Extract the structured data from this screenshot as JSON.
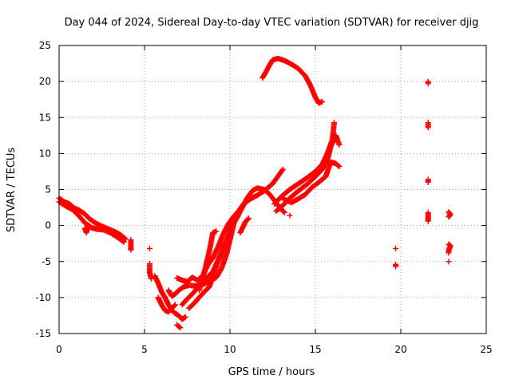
{
  "chart_data": {
    "type": "scatter",
    "title": "Day 044 of 2024, Sidereal Day-to-day VTEC variation (SDTVAR) for receiver djig",
    "xlabel": "GPS time / hours",
    "ylabel": "SDTVAR / TECUs",
    "xlim": [
      0,
      25
    ],
    "ylim": [
      -15,
      25
    ],
    "xticks": [
      "0",
      "5",
      "10",
      "15",
      "20",
      "25"
    ],
    "yticks": [
      "25",
      "20",
      "15",
      "10",
      "5",
      "0",
      "-5",
      "-10",
      "-15"
    ],
    "grid": true,
    "marker": "plus",
    "color": "#ff0000",
    "segments": [
      [
        [
          0.0,
          3.8
        ],
        [
          0.3,
          3.3
        ],
        [
          0.6,
          3.0
        ],
        [
          0.9,
          2.4
        ],
        [
          1.2,
          2.1
        ],
        [
          1.5,
          1.6
        ],
        [
          1.8,
          0.9
        ],
        [
          2.1,
          0.4
        ],
        [
          2.4,
          0.0
        ],
        [
          2.7,
          -0.3
        ],
        [
          3.0,
          -0.6
        ],
        [
          3.3,
          -0.9
        ],
        [
          3.6,
          -1.3
        ],
        [
          3.9,
          -1.9
        ]
      ],
      [
        [
          0.0,
          3.3
        ],
        [
          0.4,
          2.7
        ],
        [
          0.8,
          2.2
        ],
        [
          1.1,
          1.5
        ],
        [
          1.5,
          0.4
        ],
        [
          1.9,
          -0.3
        ],
        [
          2.2,
          -0.5
        ],
        [
          2.6,
          -0.6
        ],
        [
          3.0,
          -1.0
        ],
        [
          3.4,
          -1.6
        ],
        [
          3.8,
          -2.3
        ]
      ],
      [
        [
          1.5,
          -0.4
        ],
        [
          1.6,
          -1.0
        ],
        [
          1.7,
          -0.2
        ]
      ],
      [
        [
          4.2,
          -2.0
        ],
        [
          4.2,
          -2.5
        ],
        [
          4.2,
          -3.0
        ],
        [
          4.2,
          -3.4
        ]
      ],
      [
        [
          5.3,
          -3.2
        ]
      ],
      [
        [
          5.3,
          -5.3
        ],
        [
          5.3,
          -6.5
        ],
        [
          5.4,
          -7.4
        ]
      ],
      [
        [
          5.6,
          -7.0
        ],
        [
          5.8,
          -8.0
        ],
        [
          6.0,
          -9.2
        ],
        [
          6.2,
          -10.0
        ],
        [
          6.4,
          -11.0
        ],
        [
          6.6,
          -11.8
        ],
        [
          6.8,
          -12.2
        ],
        [
          7.0,
          -12.5
        ],
        [
          7.2,
          -13.0
        ],
        [
          7.4,
          -12.7
        ]
      ],
      [
        [
          5.8,
          -10.0
        ],
        [
          6.0,
          -11.0
        ],
        [
          6.2,
          -11.8
        ],
        [
          6.4,
          -12.0
        ],
        [
          6.6,
          -11.5
        ],
        [
          6.8,
          -11.0
        ]
      ],
      [
        [
          6.9,
          -13.8
        ],
        [
          7.1,
          -14.2
        ]
      ],
      [
        [
          6.4,
          -9.0
        ],
        [
          6.6,
          -9.8
        ],
        [
          6.8,
          -9.5
        ],
        [
          7.0,
          -9.0
        ],
        [
          7.3,
          -8.5
        ],
        [
          7.6,
          -8.3
        ],
        [
          8.0,
          -8.4
        ],
        [
          8.4,
          -8.2
        ],
        [
          8.8,
          -7.8
        ],
        [
          9.2,
          -7.2
        ],
        [
          9.5,
          -6.0
        ],
        [
          9.8,
          -4.0
        ],
        [
          10.0,
          -2.0
        ],
        [
          10.2,
          0.0
        ],
        [
          10.4,
          1.5
        ]
      ],
      [
        [
          6.9,
          -7.3
        ],
        [
          7.2,
          -7.6
        ],
        [
          7.5,
          -7.8
        ],
        [
          7.8,
          -7.2
        ],
        [
          8.1,
          -7.6
        ],
        [
          8.4,
          -7.0
        ],
        [
          8.7,
          -5.5
        ],
        [
          9.0,
          -4.5
        ],
        [
          9.3,
          -3.0
        ],
        [
          9.6,
          -1.2
        ],
        [
          9.9,
          0.2
        ],
        [
          10.2,
          1.2
        ],
        [
          10.5,
          2.0
        ],
        [
          10.8,
          3.0
        ],
        [
          11.2,
          3.7
        ],
        [
          11.6,
          4.2
        ],
        [
          12.0,
          4.8
        ],
        [
          12.5,
          5.8
        ],
        [
          12.8,
          6.8
        ],
        [
          13.1,
          7.8
        ]
      ],
      [
        [
          7.2,
          -11.0
        ],
        [
          7.5,
          -10.2
        ],
        [
          7.8,
          -9.5
        ],
        [
          8.2,
          -8.4
        ],
        [
          8.6,
          -7.4
        ],
        [
          9.0,
          -6.4
        ],
        [
          9.3,
          -4.8
        ],
        [
          9.6,
          -3.0
        ],
        [
          9.9,
          -1.4
        ],
        [
          10.1,
          0.0
        ],
        [
          10.4,
          1.0
        ],
        [
          10.7,
          2.4
        ],
        [
          11.0,
          3.8
        ],
        [
          11.3,
          4.8
        ],
        [
          11.6,
          5.2
        ],
        [
          12.0,
          5.0
        ],
        [
          12.3,
          4.4
        ],
        [
          12.6,
          3.5
        ],
        [
          12.9,
          2.5
        ],
        [
          13.2,
          1.8
        ]
      ],
      [
        [
          7.6,
          -11.5
        ],
        [
          7.9,
          -10.8
        ],
        [
          8.2,
          -10.0
        ],
        [
          8.5,
          -9.2
        ],
        [
          8.8,
          -8.5
        ],
        [
          9.0,
          -7.0
        ],
        [
          9.3,
          -5.0
        ],
        [
          9.6,
          -3.5
        ],
        [
          9.9,
          -2.0
        ]
      ],
      [
        [
          8.2,
          -9.0
        ],
        [
          8.5,
          -6.5
        ],
        [
          8.8,
          -3.5
        ],
        [
          9.0,
          -1.0
        ],
        [
          9.2,
          -0.8
        ]
      ],
      [
        [
          10.6,
          -1.0
        ],
        [
          10.9,
          0.5
        ],
        [
          11.1,
          1.0
        ]
      ],
      [
        [
          11.9,
          20.5
        ],
        [
          12.1,
          21.3
        ],
        [
          12.3,
          22.2
        ],
        [
          12.5,
          23.0
        ],
        [
          12.8,
          23.2
        ],
        [
          13.2,
          22.9
        ],
        [
          13.6,
          22.4
        ],
        [
          14.0,
          21.8
        ],
        [
          14.4,
          20.8
        ],
        [
          14.7,
          19.5
        ],
        [
          15.0,
          17.8
        ],
        [
          15.2,
          17.0
        ],
        [
          15.4,
          17.2
        ]
      ],
      [
        [
          12.6,
          3.0
        ],
        [
          13.0,
          4.0
        ],
        [
          13.5,
          5.0
        ],
        [
          14.0,
          5.8
        ],
        [
          14.5,
          6.6
        ],
        [
          15.0,
          7.5
        ],
        [
          15.4,
          8.5
        ],
        [
          15.7,
          10.0
        ],
        [
          16.0,
          12.0
        ],
        [
          16.1,
          14.3
        ]
      ],
      [
        [
          12.7,
          2.0
        ],
        [
          13.1,
          2.8
        ],
        [
          13.5,
          3.8
        ],
        [
          14.0,
          4.8
        ],
        [
          14.5,
          5.7
        ],
        [
          15.0,
          6.8
        ],
        [
          15.4,
          7.8
        ],
        [
          15.7,
          9.0
        ],
        [
          15.9,
          11.0
        ],
        [
          16.2,
          12.5
        ],
        [
          16.4,
          11.2
        ]
      ],
      [
        [
          13.0,
          4.0
        ],
        [
          13.2,
          3.6
        ],
        [
          13.6,
          3.2
        ],
        [
          14.0,
          3.7
        ],
        [
          14.4,
          4.3
        ],
        [
          14.8,
          5.3
        ],
        [
          15.2,
          6.0
        ],
        [
          15.6,
          6.8
        ],
        [
          15.9,
          8.8
        ],
        [
          16.2,
          8.6
        ],
        [
          16.4,
          8.2
        ]
      ],
      [
        [
          13.5,
          1.4
        ]
      ],
      [
        [
          19.7,
          -3.2
        ]
      ],
      [
        [
          19.7,
          -5.4
        ],
        [
          19.7,
          -5.7
        ]
      ],
      [
        [
          21.6,
          20.0
        ],
        [
          21.6,
          19.7
        ]
      ],
      [
        [
          21.6,
          14.3
        ],
        [
          21.6,
          13.6
        ]
      ],
      [
        [
          21.6,
          6.4
        ],
        [
          21.6,
          6.0
        ]
      ],
      [
        [
          21.6,
          1.8
        ],
        [
          21.6,
          1.2
        ],
        [
          21.6,
          0.6
        ]
      ],
      [
        [
          22.8,
          1.9
        ],
        [
          22.9,
          1.5
        ],
        [
          22.8,
          1.2
        ]
      ],
      [
        [
          22.8,
          -2.6
        ],
        [
          22.9,
          -2.8
        ],
        [
          22.8,
          -3.5
        ],
        [
          22.8,
          -3.8
        ]
      ],
      [
        [
          22.8,
          -5.0
        ]
      ]
    ]
  }
}
